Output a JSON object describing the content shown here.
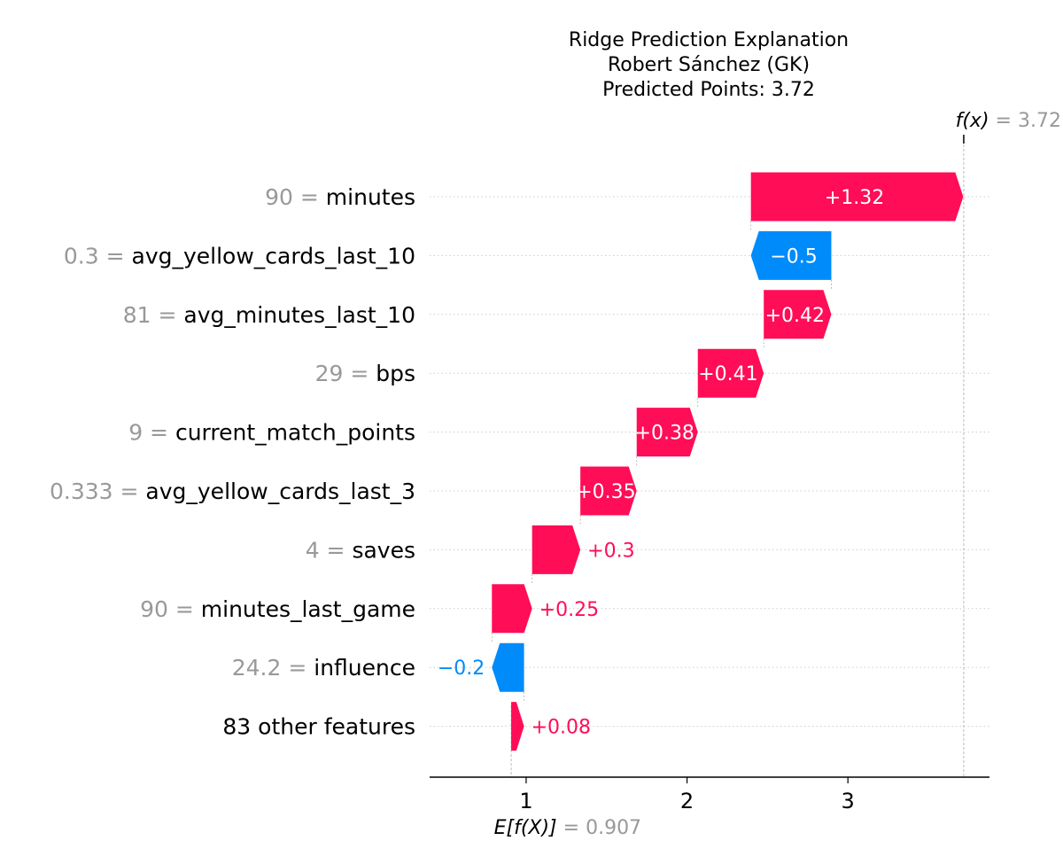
{
  "chart_data": {
    "type": "waterfall",
    "title_lines": [
      "Ridge Prediction Explanation",
      "Robert Sánchez (GK)",
      "Predicted Points: 3.72"
    ],
    "base_value": 0.907,
    "base_value_label": "E[f(X)]",
    "base_value_text": "0.907",
    "output_value": 3.72,
    "output_value_label": "f(x)",
    "output_value_text": "3.72",
    "xlim": [
      0.4,
      3.88
    ],
    "xticks": [
      1,
      2,
      3
    ],
    "colors": {
      "positive": "#ff0d57",
      "negative": "#008bfb",
      "feature_value": "#999999",
      "text": "#000000",
      "grid": "#cccccc"
    },
    "features": [
      {
        "value": "90",
        "name": "minutes",
        "contribution": 1.32,
        "label": "+1.32"
      },
      {
        "value": "0.3",
        "name": "avg_yellow_cards_last_10",
        "contribution": -0.5,
        "label": "−0.5"
      },
      {
        "value": "81",
        "name": "avg_minutes_last_10",
        "contribution": 0.42,
        "label": "+0.42"
      },
      {
        "value": "29",
        "name": "bps",
        "contribution": 0.41,
        "label": "+0.41"
      },
      {
        "value": "9",
        "name": "current_match_points",
        "contribution": 0.38,
        "label": "+0.38"
      },
      {
        "value": "0.333",
        "name": "avg_yellow_cards_last_3",
        "contribution": 0.35,
        "label": "+0.35"
      },
      {
        "value": "4",
        "name": "saves",
        "contribution": 0.3,
        "label": "+0.3"
      },
      {
        "value": "90",
        "name": "minutes_last_game",
        "contribution": 0.25,
        "label": "+0.25"
      },
      {
        "value": "24.2",
        "name": "influence",
        "contribution": -0.2,
        "label": "−0.2"
      },
      {
        "value": "",
        "name": "83 other features",
        "contribution": 0.08,
        "label": "+0.08"
      }
    ]
  }
}
